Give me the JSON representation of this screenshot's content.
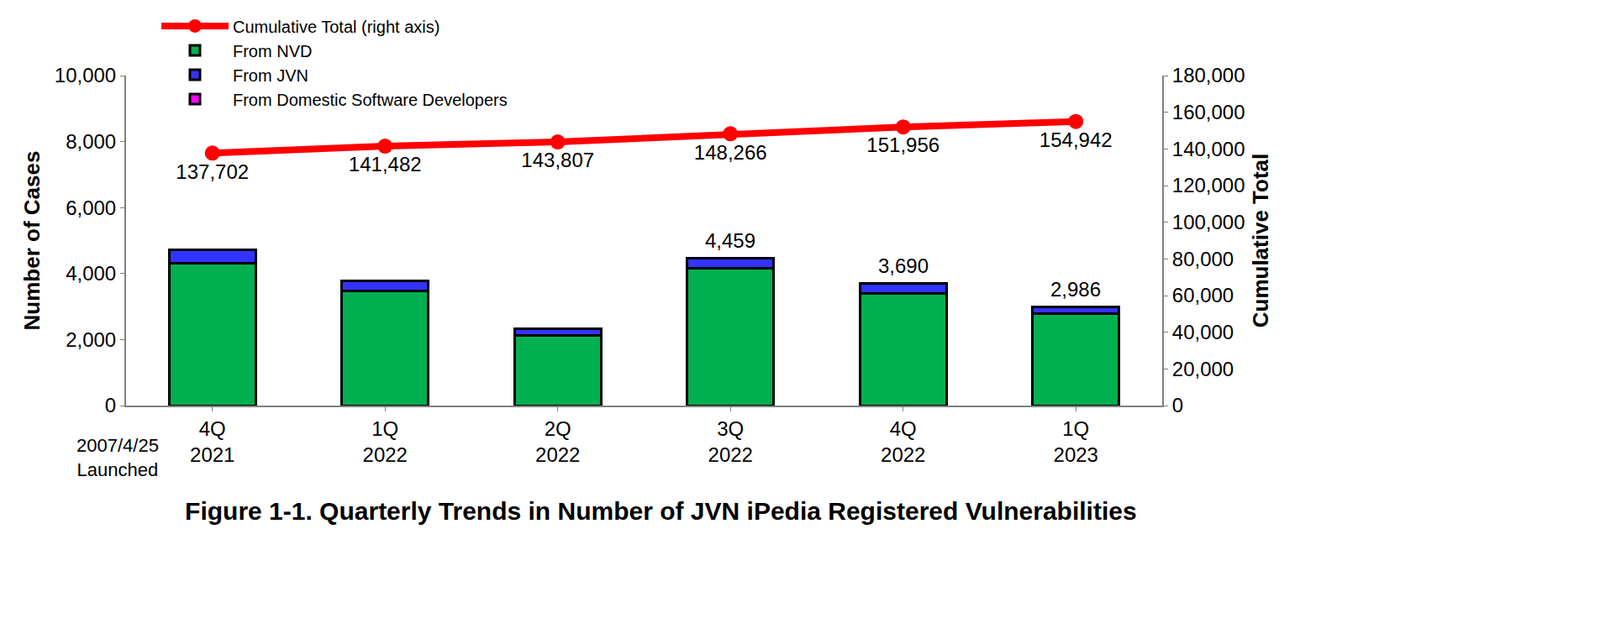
{
  "chart_data": {
    "type": "bar",
    "title": "Figure 1-1. Quarterly Trends in Number of JVN iPedia Registered Vulnerabilities",
    "y_label": "Number of Cases",
    "y2_label": "Cumulative Total",
    "categories": [
      "4Q\n2021",
      "1Q\n2022",
      "2Q\n2022",
      "3Q\n2022",
      "4Q\n2022",
      "1Q\n2023"
    ],
    "stacked": true,
    "grid": false,
    "legend": "top left",
    "series": [
      {
        "name": "From Domestic Software Developers",
        "type": "bar",
        "color": "#ff00ff",
        "values": [
          0,
          0,
          0,
          0,
          0,
          0
        ]
      },
      {
        "name": "From JVN",
        "type": "bar",
        "color": "#3333ff",
        "values": [
          390,
          310,
          205,
          309,
          290,
          196
        ]
      },
      {
        "name": "From NVD",
        "type": "bar",
        "color": "#00b050",
        "values": [
          4320,
          3470,
          2120,
          4150,
          3400,
          2790
        ]
      },
      {
        "name": "Cumulative Total (right axis)",
        "type": "line",
        "axis": "y2",
        "color": "#ff0000",
        "marker": "circle",
        "data_labels": true,
        "values": [
          137702,
          141482,
          143807,
          148266,
          151956,
          154942
        ],
        "value_labels": [
          "137,702",
          "141,482",
          "143,807",
          "148,266",
          "151,956",
          "154,942"
        ]
      }
    ],
    "annotations": [
      {
        "text": "2007/4/25\nLaunched"
      },
      {
        "category": "3Q\n2022",
        "value": 4459,
        "label": "4,459"
      },
      {
        "category": "4Q\n2022",
        "value": 3690,
        "label": "3,690"
      },
      {
        "category": "1Q\n2023",
        "value": 2986,
        "label": "2,986"
      }
    ],
    "ylim": [
      0,
      10000
    ],
    "yticks": [
      0,
      {
        "value": 2000,
        "label": "2,000"
      },
      {
        "value": 4000,
        "label": "4,000"
      },
      {
        "value": 6000,
        "label": "6,000"
      },
      {
        "value": 8000,
        "label": "8,000"
      },
      {
        "value": 10000,
        "label": "10,000"
      }
    ],
    "y2lim": [
      0,
      180000
    ],
    "y2ticks": [
      0,
      {
        "value": 20000,
        "label": "20,000"
      },
      {
        "value": 40000,
        "label": "40,000"
      },
      {
        "value": 60000,
        "label": "60,000"
      },
      {
        "value": 80000,
        "label": "80,000"
      },
      {
        "value": 100000,
        "label": "100,000"
      },
      {
        "value": 120000,
        "label": "120,000"
      },
      {
        "value": 140000,
        "label": "140,000"
      },
      {
        "value": 160000,
        "label": "160,000"
      },
      {
        "value": 180000,
        "label": "180,000"
      }
    ]
  }
}
